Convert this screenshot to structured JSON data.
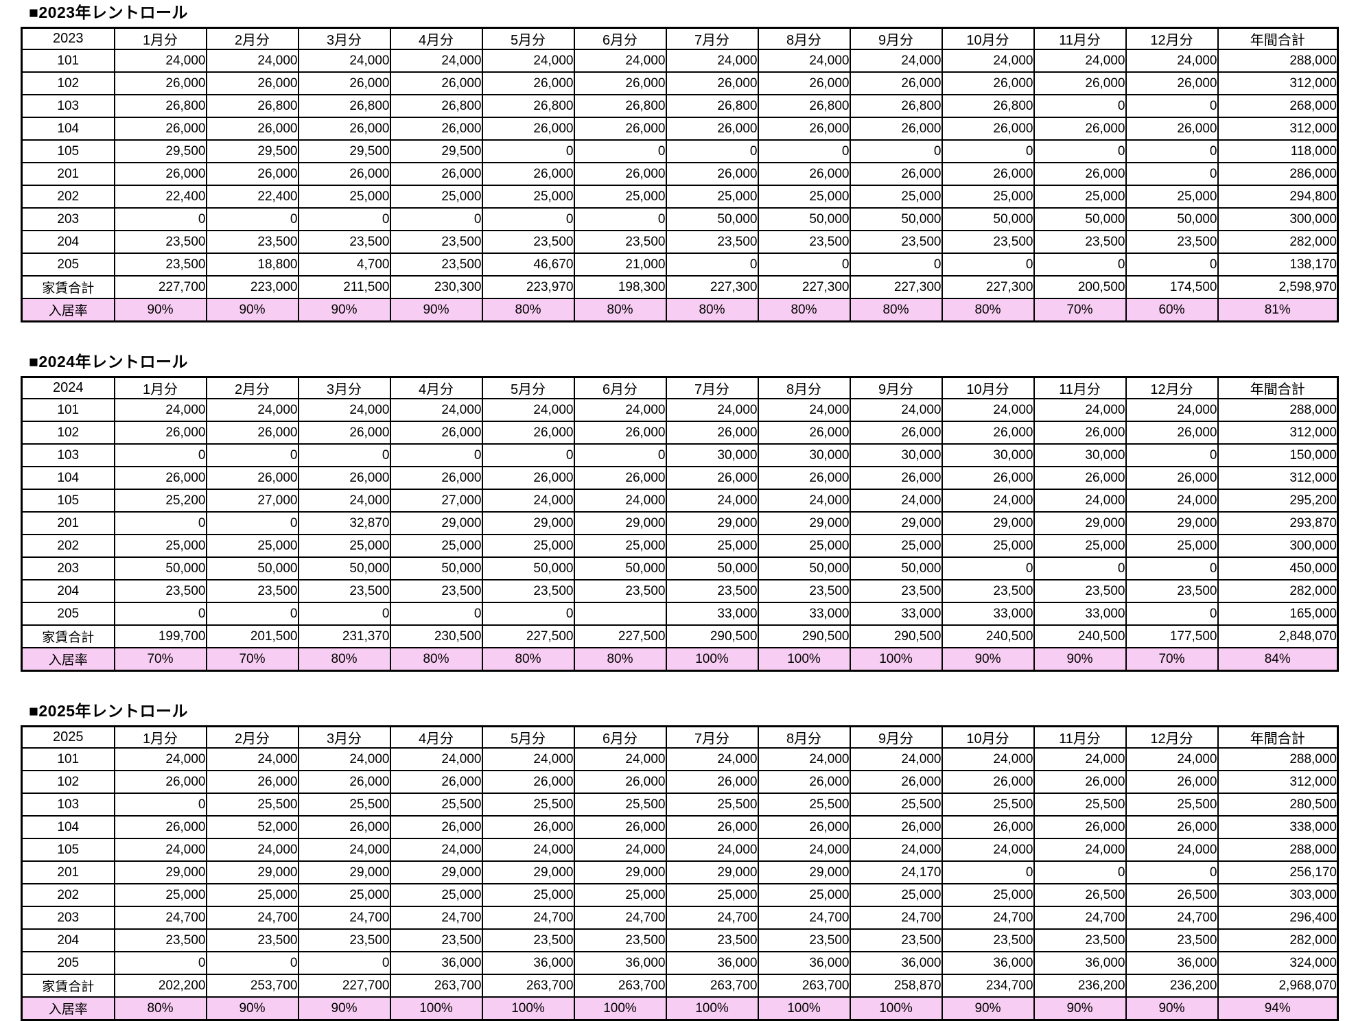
{
  "colors": {
    "occupancy_row_bg": "#F8CDF3",
    "table_border": "#000000",
    "text": "#000000"
  },
  "tables": [
    {
      "title": "■2023年レントロール",
      "year_label": "2023",
      "month_headers": [
        "1月分",
        "2月分",
        "3月分",
        "4月分",
        "5月分",
        "6月分",
        "7月分",
        "8月分",
        "9月分",
        "10月分",
        "11月分",
        "12月分"
      ],
      "total_header": "年間合計",
      "rows": [
        {
          "label": "101",
          "values": [
            "24,000",
            "24,000",
            "24,000",
            "24,000",
            "24,000",
            "24,000",
            "24,000",
            "24,000",
            "24,000",
            "24,000",
            "24,000",
            "24,000"
          ],
          "total": "288,000"
        },
        {
          "label": "102",
          "values": [
            "26,000",
            "26,000",
            "26,000",
            "26,000",
            "26,000",
            "26,000",
            "26,000",
            "26,000",
            "26,000",
            "26,000",
            "26,000",
            "26,000"
          ],
          "total": "312,000"
        },
        {
          "label": "103",
          "values": [
            "26,800",
            "26,800",
            "26,800",
            "26,800",
            "26,800",
            "26,800",
            "26,800",
            "26,800",
            "26,800",
            "26,800",
            "0",
            "0"
          ],
          "total": "268,000"
        },
        {
          "label": "104",
          "values": [
            "26,000",
            "26,000",
            "26,000",
            "26,000",
            "26,000",
            "26,000",
            "26,000",
            "26,000",
            "26,000",
            "26,000",
            "26,000",
            "26,000"
          ],
          "total": "312,000"
        },
        {
          "label": "105",
          "values": [
            "29,500",
            "29,500",
            "29,500",
            "29,500",
            "0",
            "0",
            "0",
            "0",
            "0",
            "0",
            "0",
            "0"
          ],
          "total": "118,000"
        },
        {
          "label": "201",
          "values": [
            "26,000",
            "26,000",
            "26,000",
            "26,000",
            "26,000",
            "26,000",
            "26,000",
            "26,000",
            "26,000",
            "26,000",
            "26,000",
            "0"
          ],
          "total": "286,000"
        },
        {
          "label": "202",
          "values": [
            "22,400",
            "22,400",
            "25,000",
            "25,000",
            "25,000",
            "25,000",
            "25,000",
            "25,000",
            "25,000",
            "25,000",
            "25,000",
            "25,000"
          ],
          "total": "294,800"
        },
        {
          "label": "203",
          "values": [
            "0",
            "0",
            "0",
            "0",
            "0",
            "0",
            "50,000",
            "50,000",
            "50,000",
            "50,000",
            "50,000",
            "50,000"
          ],
          "total": "300,000"
        },
        {
          "label": "204",
          "values": [
            "23,500",
            "23,500",
            "23,500",
            "23,500",
            "23,500",
            "23,500",
            "23,500",
            "23,500",
            "23,500",
            "23,500",
            "23,500",
            "23,500"
          ],
          "total": "282,000"
        },
        {
          "label": "205",
          "values": [
            "23,500",
            "18,800",
            "4,700",
            "23,500",
            "46,670",
            "21,000",
            "0",
            "0",
            "0",
            "0",
            "0",
            "0"
          ],
          "total": "138,170"
        }
      ],
      "rent_total": {
        "label": "家賃合計",
        "values": [
          "227,700",
          "223,000",
          "211,500",
          "230,300",
          "223,970",
          "198,300",
          "227,300",
          "227,300",
          "227,300",
          "227,300",
          "200,500",
          "174,500"
        ],
        "total": "2,598,970"
      },
      "occupancy": {
        "label": "入居率",
        "values": [
          "90%",
          "90%",
          "90%",
          "90%",
          "80%",
          "80%",
          "80%",
          "80%",
          "80%",
          "80%",
          "70%",
          "60%"
        ],
        "total": "81%"
      }
    },
    {
      "title": "■2024年レントロール",
      "year_label": "2024",
      "month_headers": [
        "1月分",
        "2月分",
        "3月分",
        "4月分",
        "5月分",
        "6月分",
        "7月分",
        "8月分",
        "9月分",
        "10月分",
        "11月分",
        "12月分"
      ],
      "total_header": "年間合計",
      "rows": [
        {
          "label": "101",
          "values": [
            "24,000",
            "24,000",
            "24,000",
            "24,000",
            "24,000",
            "24,000",
            "24,000",
            "24,000",
            "24,000",
            "24,000",
            "24,000",
            "24,000"
          ],
          "total": "288,000"
        },
        {
          "label": "102",
          "values": [
            "26,000",
            "26,000",
            "26,000",
            "26,000",
            "26,000",
            "26,000",
            "26,000",
            "26,000",
            "26,000",
            "26,000",
            "26,000",
            "26,000"
          ],
          "total": "312,000"
        },
        {
          "label": "103",
          "values": [
            "0",
            "0",
            "0",
            "0",
            "0",
            "0",
            "30,000",
            "30,000",
            "30,000",
            "30,000",
            "30,000",
            "0"
          ],
          "total": "150,000"
        },
        {
          "label": "104",
          "values": [
            "26,000",
            "26,000",
            "26,000",
            "26,000",
            "26,000",
            "26,000",
            "26,000",
            "26,000",
            "26,000",
            "26,000",
            "26,000",
            "26,000"
          ],
          "total": "312,000"
        },
        {
          "label": "105",
          "values": [
            "25,200",
            "27,000",
            "24,000",
            "27,000",
            "24,000",
            "24,000",
            "24,000",
            "24,000",
            "24,000",
            "24,000",
            "24,000",
            "24,000"
          ],
          "total": "295,200"
        },
        {
          "label": "201",
          "values": [
            "0",
            "0",
            "32,870",
            "29,000",
            "29,000",
            "29,000",
            "29,000",
            "29,000",
            "29,000",
            "29,000",
            "29,000",
            "29,000"
          ],
          "total": "293,870"
        },
        {
          "label": "202",
          "values": [
            "25,000",
            "25,000",
            "25,000",
            "25,000",
            "25,000",
            "25,000",
            "25,000",
            "25,000",
            "25,000",
            "25,000",
            "25,000",
            "25,000"
          ],
          "total": "300,000"
        },
        {
          "label": "203",
          "values": [
            "50,000",
            "50,000",
            "50,000",
            "50,000",
            "50,000",
            "50,000",
            "50,000",
            "50,000",
            "50,000",
            "0",
            "0",
            "0"
          ],
          "total": "450,000"
        },
        {
          "label": "204",
          "values": [
            "23,500",
            "23,500",
            "23,500",
            "23,500",
            "23,500",
            "23,500",
            "23,500",
            "23,500",
            "23,500",
            "23,500",
            "23,500",
            "23,500"
          ],
          "total": "282,000"
        },
        {
          "label": "205",
          "values": [
            "0",
            "0",
            "0",
            "0",
            "0",
            "",
            "33,000",
            "33,000",
            "33,000",
            "33,000",
            "33,000",
            "0"
          ],
          "total": "165,000"
        }
      ],
      "rent_total": {
        "label": "家賃合計",
        "values": [
          "199,700",
          "201,500",
          "231,370",
          "230,500",
          "227,500",
          "227,500",
          "290,500",
          "290,500",
          "290,500",
          "240,500",
          "240,500",
          "177,500"
        ],
        "total": "2,848,070"
      },
      "occupancy": {
        "label": "入居率",
        "values": [
          "70%",
          "70%",
          "80%",
          "80%",
          "80%",
          "80%",
          "100%",
          "100%",
          "100%",
          "90%",
          "90%",
          "70%"
        ],
        "total": "84%"
      }
    },
    {
      "title": "■2025年レントロール",
      "year_label": "2025",
      "month_headers": [
        "1月分",
        "2月分",
        "3月分",
        "4月分",
        "5月分",
        "6月分",
        "7月分",
        "8月分",
        "9月分",
        "10月分",
        "11月分",
        "12月分"
      ],
      "total_header": "年間合計",
      "rows": [
        {
          "label": "101",
          "values": [
            "24,000",
            "24,000",
            "24,000",
            "24,000",
            "24,000",
            "24,000",
            "24,000",
            "24,000",
            "24,000",
            "24,000",
            "24,000",
            "24,000"
          ],
          "total": "288,000"
        },
        {
          "label": "102",
          "values": [
            "26,000",
            "26,000",
            "26,000",
            "26,000",
            "26,000",
            "26,000",
            "26,000",
            "26,000",
            "26,000",
            "26,000",
            "26,000",
            "26,000"
          ],
          "total": "312,000"
        },
        {
          "label": "103",
          "values": [
            "0",
            "25,500",
            "25,500",
            "25,500",
            "25,500",
            "25,500",
            "25,500",
            "25,500",
            "25,500",
            "25,500",
            "25,500",
            "25,500"
          ],
          "total": "280,500"
        },
        {
          "label": "104",
          "values": [
            "26,000",
            "52,000",
            "26,000",
            "26,000",
            "26,000",
            "26,000",
            "26,000",
            "26,000",
            "26,000",
            "26,000",
            "26,000",
            "26,000"
          ],
          "total": "338,000"
        },
        {
          "label": "105",
          "values": [
            "24,000",
            "24,000",
            "24,000",
            "24,000",
            "24,000",
            "24,000",
            "24,000",
            "24,000",
            "24,000",
            "24,000",
            "24,000",
            "24,000"
          ],
          "total": "288,000"
        },
        {
          "label": "201",
          "values": [
            "29,000",
            "29,000",
            "29,000",
            "29,000",
            "29,000",
            "29,000",
            "29,000",
            "29,000",
            "24,170",
            "0",
            "0",
            "0"
          ],
          "total": "256,170"
        },
        {
          "label": "202",
          "values": [
            "25,000",
            "25,000",
            "25,000",
            "25,000",
            "25,000",
            "25,000",
            "25,000",
            "25,000",
            "25,000",
            "25,000",
            "26,500",
            "26,500"
          ],
          "total": "303,000"
        },
        {
          "label": "203",
          "values": [
            "24,700",
            "24,700",
            "24,700",
            "24,700",
            "24,700",
            "24,700",
            "24,700",
            "24,700",
            "24,700",
            "24,700",
            "24,700",
            "24,700"
          ],
          "total": "296,400"
        },
        {
          "label": "204",
          "values": [
            "23,500",
            "23,500",
            "23,500",
            "23,500",
            "23,500",
            "23,500",
            "23,500",
            "23,500",
            "23,500",
            "23,500",
            "23,500",
            "23,500"
          ],
          "total": "282,000"
        },
        {
          "label": "205",
          "values": [
            "0",
            "0",
            "0",
            "36,000",
            "36,000",
            "36,000",
            "36,000",
            "36,000",
            "36,000",
            "36,000",
            "36,000",
            "36,000"
          ],
          "total": "324,000"
        }
      ],
      "rent_total": {
        "label": "家賃合計",
        "values": [
          "202,200",
          "253,700",
          "227,700",
          "263,700",
          "263,700",
          "263,700",
          "263,700",
          "263,700",
          "258,870",
          "234,700",
          "236,200",
          "236,200"
        ],
        "total": "2,968,070"
      },
      "occupancy": {
        "label": "入居率",
        "values": [
          "80%",
          "90%",
          "90%",
          "100%",
          "100%",
          "100%",
          "100%",
          "100%",
          "100%",
          "90%",
          "90%",
          "90%"
        ],
        "total": "94%"
      }
    }
  ]
}
